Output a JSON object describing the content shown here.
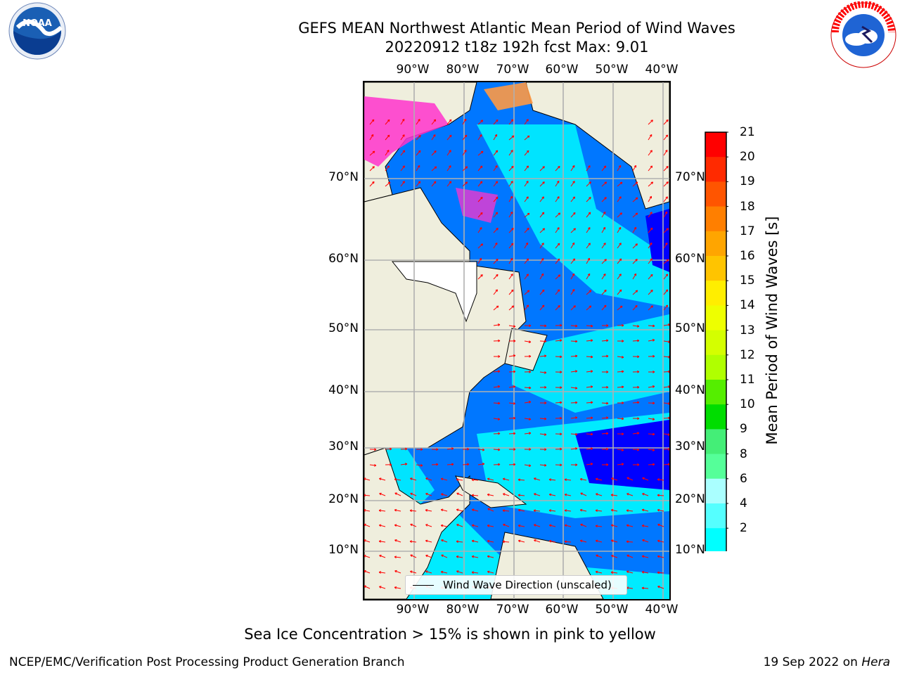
{
  "title_line1": "GEFS MEAN Northwest Atlantic Mean Period of Wind Waves",
  "title_line2": "20220912 t18z 192h fcst   Max: 9.01",
  "lon_labels": [
    "90°W",
    "80°W",
    "70°W",
    "60°W",
    "50°W",
    "40°W"
  ],
  "lat_labels": [
    "70°N",
    "60°N",
    "50°N",
    "40°N",
    "30°N",
    "20°N",
    "10°N"
  ],
  "colorbar": {
    "title": "Mean Period of Wind Waves [s]",
    "ticks": [
      "21",
      "20",
      "19",
      "18",
      "17",
      "16",
      "15",
      "14",
      "13",
      "12",
      "11",
      "10",
      "9",
      "8",
      "6",
      "4",
      "2"
    ],
    "colors": [
      "#ff0000",
      "#ff2a00",
      "#ff5500",
      "#ff7f00",
      "#ffa500",
      "#ffc400",
      "#ffee00",
      "#eeff00",
      "#d4ff00",
      "#b0ff00",
      "#55ee00",
      "#00dd00",
      "#44ee77",
      "#55ff99",
      "#aaffff",
      "#55ffff",
      "#00ffff",
      "#0077ff",
      "#0000ff"
    ],
    "extend": "min"
  },
  "legend": {
    "label": "Wind Wave Direction (unscaled)"
  },
  "footnote": "Sea Ice Concentration > 15% is shown in pink to yellow",
  "credit_left": "NCEP/EMC/Verification Post Processing Product Generation Branch",
  "credit_right_date": "19 Sep 2022 on ",
  "credit_right_machine": "Hera",
  "logos": {
    "noaa": {
      "icon": "noaa-logo",
      "text": "NOAA"
    },
    "nws": {
      "icon": "nws-logo",
      "text": "NATIONAL WEATHER SERVICE"
    }
  },
  "map_colors": {
    "land": "#efeedd",
    "lake": "#ffffff",
    "arrow": "#ff0000",
    "grid": "#b0b0b0",
    "coast": "#000000"
  }
}
